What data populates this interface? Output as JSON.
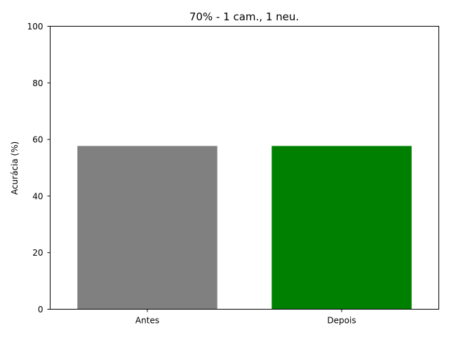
{
  "chart_data": {
    "type": "bar",
    "title": "70% - 1 cam., 1 neu.",
    "xlabel": "",
    "ylabel": "Acurácia (%)",
    "categories": [
      "Antes",
      "Depois"
    ],
    "values": [
      57.7,
      57.7
    ],
    "colors": [
      "#808080",
      "#008000"
    ],
    "ylim": [
      0,
      100
    ],
    "yticks": [
      0,
      20,
      40,
      60,
      80,
      100
    ],
    "grid": false,
    "legend": "none"
  }
}
